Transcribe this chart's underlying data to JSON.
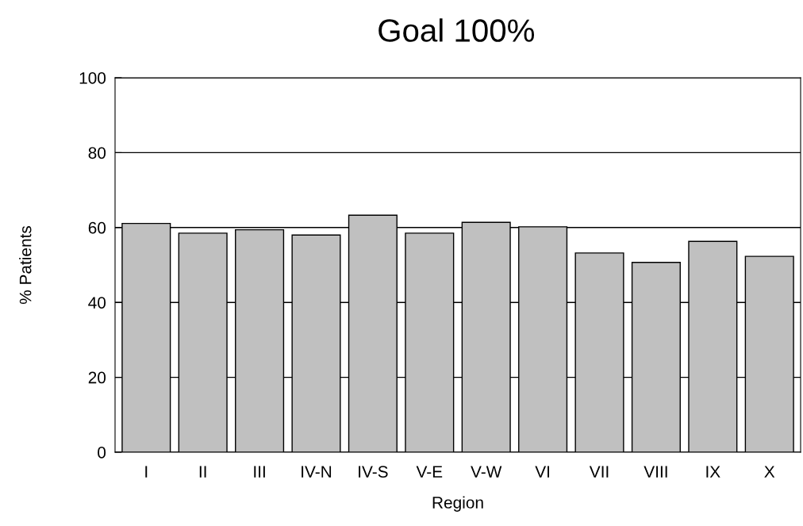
{
  "chart_data": {
    "type": "bar",
    "title": "Goal 100%",
    "xlabel": "Region",
    "ylabel": "% Patients",
    "categories": [
      "I",
      "II",
      "III",
      "IV-N",
      "IV-S",
      "V-E",
      "V-W",
      "VI",
      "VII",
      "VIII",
      "IX",
      "X"
    ],
    "values": [
      61.1,
      58.5,
      59.4,
      58.0,
      63.3,
      58.5,
      61.4,
      60.2,
      53.2,
      50.7,
      56.3,
      52.3
    ],
    "color": "#c0c0c0",
    "ylim": [
      0,
      100
    ],
    "yticks": [
      0,
      20,
      40,
      60,
      80,
      100
    ],
    "grid": "y"
  }
}
